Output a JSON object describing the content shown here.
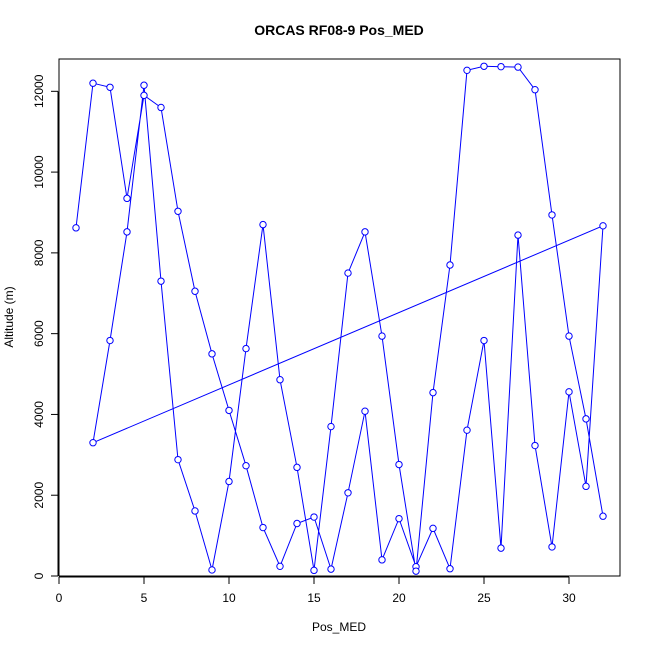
{
  "chart_data": {
    "type": "line",
    "title": "ORCAS RF08-9 Pos_MED",
    "xlabel": "Pos_MED",
    "ylabel": "Altitude (m)",
    "xlim": [
      0,
      33
    ],
    "ylim": [
      0,
      12800
    ],
    "x_ticks": [
      0,
      5,
      10,
      15,
      20,
      25,
      30
    ],
    "y_ticks": [
      0,
      2000,
      4000,
      6000,
      8000,
      10000,
      12000
    ],
    "color": "#0000ff",
    "grid": false,
    "series": [
      {
        "points": [
          [
            1,
            8620
          ],
          [
            2,
            12200
          ],
          [
            3,
            12100
          ],
          [
            4,
            9350
          ],
          [
            5,
            11900
          ],
          [
            6,
            11600
          ],
          [
            7,
            9030
          ],
          [
            8,
            7050
          ],
          [
            9,
            5500
          ],
          [
            10,
            4100
          ],
          [
            11,
            2730
          ],
          [
            12,
            1200
          ],
          [
            13,
            240
          ],
          [
            14,
            1300
          ],
          [
            15,
            1460
          ],
          [
            16,
            170
          ],
          [
            17,
            2060
          ],
          [
            18,
            4080
          ],
          [
            19,
            400
          ],
          [
            20,
            1420
          ],
          [
            21,
            230
          ],
          [
            22,
            1180
          ],
          [
            23,
            180
          ],
          [
            24,
            3610
          ],
          [
            25,
            5830
          ],
          [
            26,
            690
          ],
          [
            27,
            8440
          ],
          [
            28,
            3230
          ],
          [
            29,
            720
          ],
          [
            30,
            4560
          ],
          [
            31,
            2220
          ],
          [
            32,
            8670
          ],
          [
            2,
            3300
          ],
          [
            3,
            5830
          ],
          [
            4,
            8520
          ],
          [
            5,
            12150
          ],
          [
            6,
            7300
          ],
          [
            7,
            2880
          ],
          [
            8,
            1610
          ],
          [
            9,
            150
          ],
          [
            10,
            2340
          ],
          [
            11,
            5630
          ],
          [
            12,
            8700
          ],
          [
            13,
            4860
          ],
          [
            14,
            2690
          ],
          [
            15,
            140
          ],
          [
            16,
            3700
          ],
          [
            17,
            7500
          ],
          [
            18,
            8520
          ],
          [
            19,
            5940
          ],
          [
            20,
            2760
          ],
          [
            21,
            120
          ],
          [
            22,
            4540
          ],
          [
            23,
            7700
          ],
          [
            24,
            12520
          ],
          [
            25,
            12620
          ],
          [
            26,
            12610
          ],
          [
            27,
            12600
          ],
          [
            28,
            12040
          ],
          [
            29,
            8940
          ],
          [
            30,
            5940
          ],
          [
            31,
            3890
          ],
          [
            32,
            1480
          ]
        ]
      }
    ]
  }
}
